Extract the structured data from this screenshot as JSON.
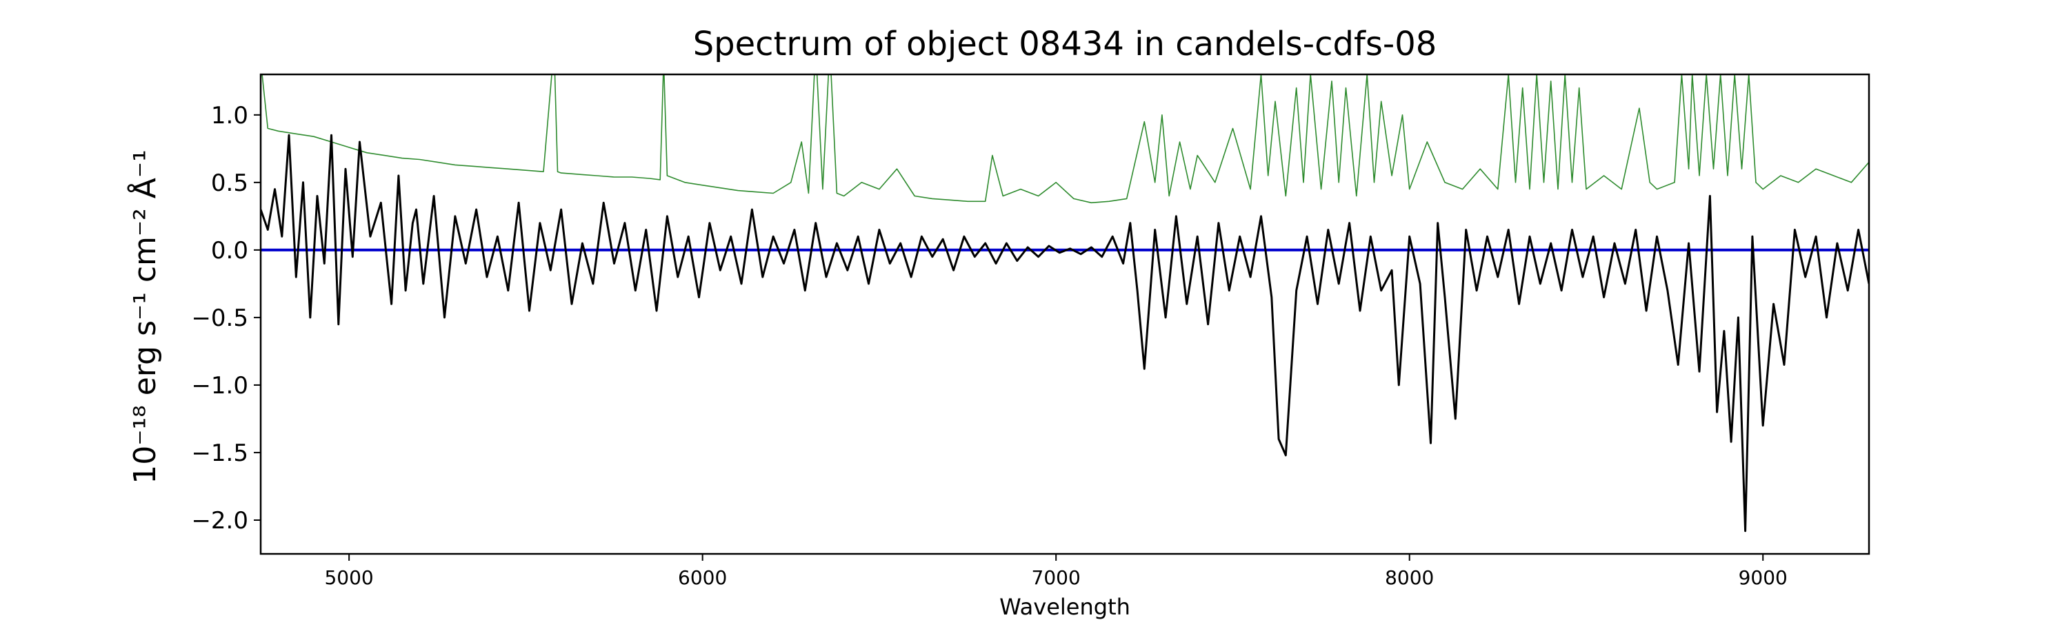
{
  "chart_data": {
    "type": "line",
    "title": "Spectrum of object 08434 in candels-cdfs-08",
    "xlabel": "Wavelength",
    "ylabel": "10⁻¹⁸ erg s⁻¹ cm⁻² Å⁻¹",
    "xlim": [
      4750,
      9300
    ],
    "ylim": [
      -2.25,
      1.3
    ],
    "x_ticks": [
      5000,
      6000,
      7000,
      8000,
      9000
    ],
    "y_ticks": [
      -2.0,
      -1.5,
      -1.0,
      -0.5,
      0.0,
      0.5,
      1.0
    ],
    "grid": false,
    "colors": {
      "flux": "#000000",
      "noise": "#2e8b2e",
      "model": "#0000cc"
    },
    "series": [
      {
        "x": [
          4750,
          4770,
          4790,
          4810,
          4830,
          4850,
          4870,
          4890,
          4910,
          4930,
          4950,
          4970,
          4990,
          5010,
          5030,
          5060,
          5090,
          5120,
          5140,
          5160,
          5180,
          5190,
          5210,
          5240,
          5270,
          5300,
          5330,
          5360,
          5390,
          5420,
          5450,
          5480,
          5510,
          5540,
          5570,
          5600,
          5630,
          5660,
          5690,
          5720,
          5750,
          5780,
          5810,
          5840,
          5870,
          5900,
          5930,
          5960,
          5990,
          6020,
          6050,
          6080,
          6110,
          6140,
          6170,
          6200,
          6230,
          6260,
          6290,
          6320,
          6350,
          6380,
          6410,
          6440,
          6470,
          6500,
          6530,
          6560,
          6590,
          6620,
          6650,
          6680,
          6710,
          6740,
          6770,
          6800,
          6830,
          6860,
          6890,
          6920,
          6950,
          6980,
          7010,
          7040,
          7070,
          7100,
          7130,
          7160,
          7190,
          7210,
          7230,
          7250,
          7280,
          7310,
          7340,
          7370,
          7400,
          7430,
          7460,
          7490,
          7520,
          7550,
          7580,
          7610,
          7630,
          7650,
          7680,
          7710,
          7740,
          7770,
          7800,
          7830,
          7860,
          7890,
          7920,
          7950,
          7970,
          8000,
          8030,
          8060,
          8080,
          8100,
          8130,
          8160,
          8190,
          8220,
          8250,
          8280,
          8310,
          8340,
          8370,
          8400,
          8430,
          8460,
          8490,
          8520,
          8550,
          8580,
          8610,
          8640,
          8670,
          8700,
          8730,
          8760,
          8790,
          8820,
          8850,
          8870,
          8890,
          8910,
          8930,
          8950,
          8970,
          9000,
          9030,
          9060,
          9090,
          9120,
          9150,
          9180,
          9210,
          9240,
          9270,
          9300
        ],
        "y": [
          0.3,
          0.15,
          0.45,
          0.1,
          0.85,
          -0.2,
          0.5,
          -0.5,
          0.4,
          -0.1,
          0.85,
          -0.55,
          0.6,
          -0.05,
          0.8,
          0.1,
          0.35,
          -0.4,
          0.55,
          -0.3,
          0.2,
          0.3,
          -0.25,
          0.4,
          -0.5,
          0.25,
          -0.1,
          0.3,
          -0.2,
          0.1,
          -0.3,
          0.35,
          -0.45,
          0.2,
          -0.15,
          0.3,
          -0.4,
          0.05,
          -0.25,
          0.35,
          -0.1,
          0.2,
          -0.3,
          0.15,
          -0.45,
          0.25,
          -0.2,
          0.1,
          -0.35,
          0.2,
          -0.15,
          0.1,
          -0.25,
          0.3,
          -0.2,
          0.1,
          -0.1,
          0.15,
          -0.3,
          0.2,
          -0.2,
          0.05,
          -0.15,
          0.1,
          -0.25,
          0.15,
          -0.1,
          0.05,
          -0.2,
          0.1,
          -0.05,
          0.08,
          -0.15,
          0.1,
          -0.05,
          0.05,
          -0.1,
          0.05,
          -0.08,
          0.02,
          -0.05,
          0.03,
          -0.02,
          0.01,
          -0.03,
          0.02,
          -0.05,
          0.1,
          -0.1,
          0.2,
          -0.3,
          -0.88,
          0.15,
          -0.5,
          0.25,
          -0.4,
          0.1,
          -0.55,
          0.2,
          -0.3,
          0.1,
          -0.2,
          0.25,
          -0.35,
          -1.4,
          -1.52,
          -0.3,
          0.1,
          -0.4,
          0.15,
          -0.25,
          0.2,
          -0.45,
          0.1,
          -0.3,
          -0.15,
          -1.0,
          0.1,
          -0.25,
          -1.43,
          0.2,
          -0.35,
          -1.25,
          0.15,
          -0.3,
          0.1,
          -0.2,
          0.15,
          -0.4,
          0.1,
          -0.25,
          0.05,
          -0.3,
          0.15,
          -0.2,
          0.1,
          -0.35,
          0.05,
          -0.25,
          0.15,
          -0.45,
          0.1,
          -0.3,
          -0.85,
          0.05,
          -0.9,
          0.4,
          -1.2,
          -0.6,
          -1.42,
          -0.5,
          -2.08,
          0.1,
          -1.3,
          -0.4,
          -0.85,
          0.15,
          -0.2,
          0.1,
          -0.5,
          0.05,
          -0.3,
          0.15,
          -0.25
        ]
      },
      {
        "x": [
          4750,
          4770,
          4800,
          4850,
          4900,
          4950,
          5000,
          5050,
          5100,
          5150,
          5200,
          5250,
          5300,
          5350,
          5400,
          5450,
          5500,
          5550,
          5580,
          5590,
          5600,
          5650,
          5700,
          5750,
          5800,
          5850,
          5880,
          5890,
          5900,
          5950,
          6000,
          6050,
          6100,
          6150,
          6200,
          6250,
          6280,
          6300,
          6320,
          6340,
          6360,
          6380,
          6400,
          6450,
          6500,
          6550,
          6600,
          6650,
          6700,
          6750,
          6800,
          6820,
          6850,
          6900,
          6950,
          7000,
          7050,
          7100,
          7150,
          7200,
          7250,
          7280,
          7300,
          7320,
          7350,
          7380,
          7400,
          7450,
          7500,
          7550,
          7580,
          7600,
          7620,
          7650,
          7680,
          7700,
          7720,
          7750,
          7780,
          7800,
          7820,
          7850,
          7880,
          7900,
          7920,
          7950,
          7980,
          8000,
          8050,
          8100,
          8150,
          8200,
          8250,
          8280,
          8300,
          8320,
          8340,
          8360,
          8380,
          8400,
          8420,
          8440,
          8460,
          8480,
          8500,
          8550,
          8600,
          8650,
          8680,
          8700,
          8750,
          8770,
          8790,
          8800,
          8820,
          8840,
          8860,
          8880,
          8900,
          8920,
          8940,
          8960,
          8980,
          9000,
          9050,
          9100,
          9150,
          9200,
          9250,
          9300
        ],
        "y": [
          1.4,
          0.9,
          0.88,
          0.86,
          0.84,
          0.8,
          0.76,
          0.72,
          0.7,
          0.68,
          0.67,
          0.65,
          0.63,
          0.62,
          0.61,
          0.6,
          0.59,
          0.58,
          1.5,
          0.58,
          0.57,
          0.56,
          0.55,
          0.54,
          0.54,
          0.53,
          0.52,
          1.4,
          0.55,
          0.5,
          0.48,
          0.46,
          0.44,
          0.43,
          0.42,
          0.5,
          0.8,
          0.42,
          1.5,
          0.45,
          1.5,
          0.42,
          0.4,
          0.5,
          0.45,
          0.6,
          0.4,
          0.38,
          0.37,
          0.36,
          0.36,
          0.7,
          0.4,
          0.45,
          0.4,
          0.5,
          0.38,
          0.35,
          0.36,
          0.38,
          0.95,
          0.5,
          1.0,
          0.4,
          0.8,
          0.45,
          0.7,
          0.5,
          0.9,
          0.45,
          1.3,
          0.55,
          1.1,
          0.4,
          1.2,
          0.5,
          1.3,
          0.45,
          1.25,
          0.5,
          1.2,
          0.4,
          1.3,
          0.5,
          1.1,
          0.55,
          1.0,
          0.45,
          0.8,
          0.5,
          0.45,
          0.6,
          0.45,
          1.3,
          0.5,
          1.2,
          0.45,
          1.3,
          0.5,
          1.25,
          0.45,
          1.3,
          0.5,
          1.2,
          0.45,
          0.55,
          0.45,
          1.05,
          0.5,
          0.45,
          0.5,
          1.3,
          0.6,
          1.3,
          0.55,
          1.3,
          0.6,
          1.3,
          0.55,
          1.3,
          0.6,
          1.3,
          0.5,
          0.45,
          0.55,
          0.5,
          0.6,
          0.55,
          0.5,
          0.65
        ]
      },
      {
        "x": [
          4750,
          9300
        ],
        "y": [
          0.0,
          0.0
        ]
      }
    ]
  }
}
